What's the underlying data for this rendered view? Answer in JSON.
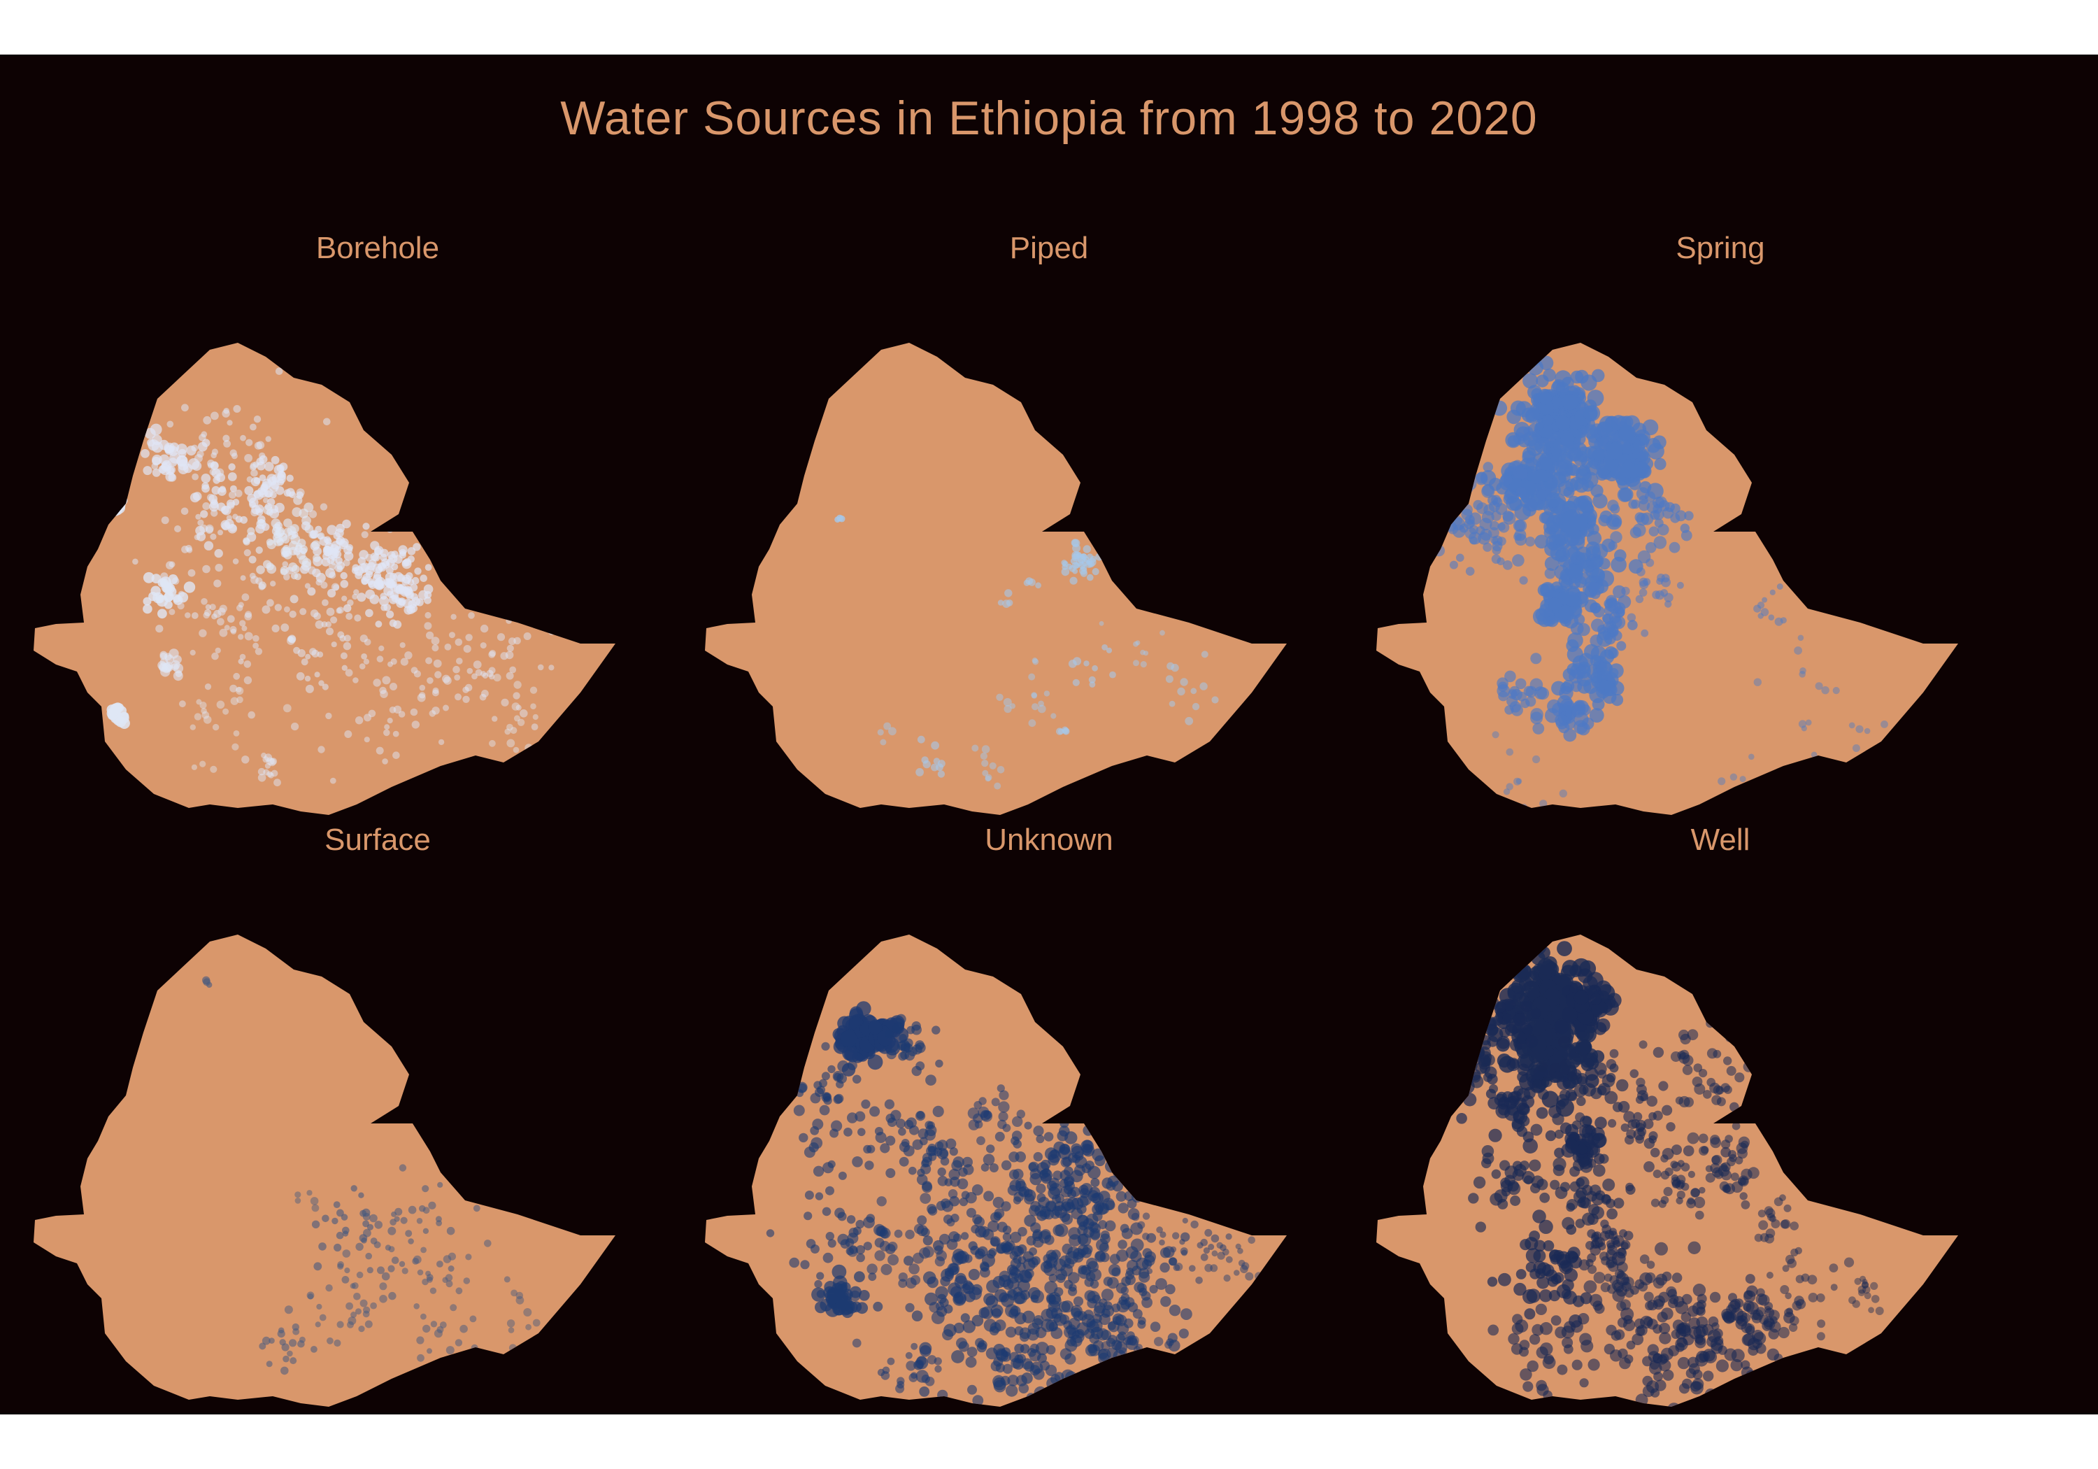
{
  "title": "Water Sources in Ethiopia from 1998 to 2020",
  "colors": {
    "background": "#0d0203",
    "land": "#d9976b",
    "text": "#d9976b"
  },
  "panels": [
    {
      "name": "Borehole",
      "color": "#dfe6f5"
    },
    {
      "name": "Piped",
      "color": "#a6c8ea"
    },
    {
      "name": "Spring",
      "color": "#4e79c4"
    },
    {
      "name": "Surface",
      "color": "#45597f"
    },
    {
      "name": "Unknown",
      "color": "#1d3a72"
    },
    {
      "name": "Well",
      "color": "#1a2a55"
    }
  ]
}
